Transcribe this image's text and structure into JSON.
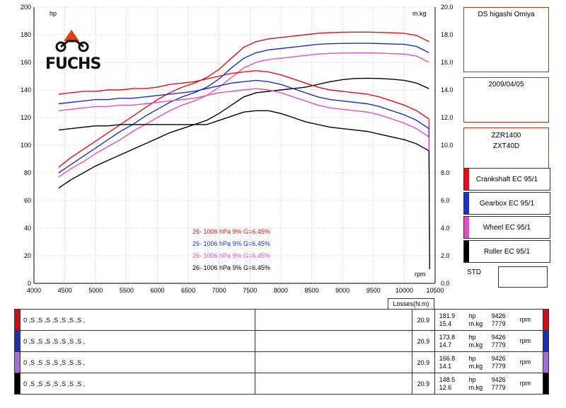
{
  "header": {
    "shop": "DS higashi Omiya",
    "date": "2009/04/05",
    "model1": "ZZR1400",
    "model2": "ZXT40D"
  },
  "logo": {
    "text": "FUCHS"
  },
  "legend": [
    {
      "label": "Crankshaft EC 95/1",
      "color": "#e0101a"
    },
    {
      "label": "Gearbox EC 95/1",
      "color": "#1a30c8"
    },
    {
      "label": "Wheel EC 95/1",
      "color": "#e050c0"
    },
    {
      "label": "Roller EC 95/1",
      "color": "#000000"
    }
  ],
  "std_label": "STD",
  "losses_header": "Losses(N.m)",
  "results": [
    {
      "color": "#c8101a",
      "dots": "0 ,S ,S ,S ,S ,S ,S ,S ,",
      "loss": "20.9",
      "hp": "181.9",
      "hp_unit": "hp",
      "hp_rpm": "9426",
      "torque": "15.4",
      "torque_unit": "m.kg",
      "torque_rpm": "7779",
      "rpm_unit": "rpm"
    },
    {
      "color": "#1a30b0",
      "dots": "0 ,S ,S ,S ,S ,S ,S ,S ,",
      "loss": "20.9",
      "hp": "173.8",
      "hp_unit": "hp",
      "hp_rpm": "9426",
      "torque": "14.7",
      "torque_unit": "m.kg",
      "torque_rpm": "7779",
      "rpm_unit": "rpm"
    },
    {
      "color": "#a070d0",
      "dots": "0 ,S ,S ,S ,S ,S ,S ,S ,",
      "loss": "20.9",
      "hp": "166.8",
      "hp_unit": "hp",
      "hp_rpm": "9426",
      "torque": "14.1",
      "torque_unit": "m.kg",
      "torque_rpm": "7779",
      "rpm_unit": "rpm"
    },
    {
      "color": "#000000",
      "dots": "0 ,S ,S ,S ,S ,S ,S ,S ,",
      "loss": "20.9",
      "hp": "148.5",
      "hp_unit": "hp",
      "hp_rpm": "9426",
      "torque": "12.6",
      "torque_unit": "m.kg",
      "torque_rpm": "7779",
      "rpm_unit": "rpm"
    }
  ],
  "chart_data": {
    "type": "line",
    "xlabel": "rpm",
    "ylabel_left": "hp",
    "ylabel_right": "m.kg",
    "xlim": [
      4000,
      10500
    ],
    "ylim_left": [
      0,
      200
    ],
    "ylim_right": [
      0,
      20
    ],
    "x_ticks": [
      4000,
      4500,
      5000,
      5500,
      6000,
      6500,
      7000,
      7500,
      8000,
      8500,
      9000,
      9500,
      10000,
      10500
    ],
    "y_ticks_left": [
      0,
      20,
      40,
      60,
      80,
      100,
      120,
      140,
      160,
      180,
      200
    ],
    "y_ticks_right": [
      "0.0",
      "2.0",
      "4.0",
      "6.0",
      "8.0",
      "10.0",
      "12.0",
      "14.0",
      "16.0",
      "18.0",
      "20.0"
    ],
    "grid": true,
    "annotations": [
      {
        "text": "26-   1006 hPa   9%     G=6.45%",
        "color": "#e0101a"
      },
      {
        "text": "26-   1006 hPa   9%     G=6.45%",
        "color": "#1a30c8"
      },
      {
        "text": "26-   1006 hPa   9%     G=6.45%",
        "color": "#e050c0"
      },
      {
        "text": "26-   1006 hPa   9%     G=6.45%",
        "color": "#000000"
      }
    ],
    "x": [
      4400,
      4600,
      4800,
      5000,
      5200,
      5400,
      5600,
      5800,
      6000,
      6200,
      6400,
      6600,
      6800,
      7000,
      7200,
      7400,
      7600,
      7800,
      8000,
      8200,
      8400,
      8600,
      8800,
      9000,
      9200,
      9400,
      9600,
      9800,
      10000,
      10200,
      10400
    ],
    "series": [
      {
        "name": "Crankshaft EC 95/1 hp",
        "axis": "left",
        "color": "#e0101a",
        "values": [
          84,
          91,
          97,
          103,
          109,
          115,
          121,
          127,
          133,
          138,
          142,
          145,
          149,
          155,
          163,
          171,
          175,
          177,
          178,
          179,
          180,
          181,
          181.5,
          181.8,
          181.9,
          181.9,
          181.7,
          181.4,
          181,
          179.5,
          175
        ]
      },
      {
        "name": "Gearbox EC 95/1 hp",
        "axis": "left",
        "color": "#1a30c8",
        "values": [
          80,
          86,
          92,
          98,
          104,
          110,
          115,
          121,
          126,
          131,
          135,
          138,
          142,
          148,
          156,
          163,
          167,
          169,
          170,
          171,
          172,
          173,
          173.5,
          173.7,
          173.8,
          173.8,
          173.6,
          173.3,
          173,
          171.5,
          167
        ]
      },
      {
        "name": "Wheel EC 95/1 hp",
        "axis": "left",
        "color": "#e050c0",
        "values": [
          77,
          83,
          88,
          94,
          99,
          104,
          110,
          115,
          120,
          125,
          129,
          132,
          136,
          142,
          149,
          156,
          160,
          162,
          163,
          164,
          165,
          166,
          166.5,
          166.7,
          166.8,
          166.8,
          166.6,
          166.3,
          166,
          164.5,
          160
        ]
      },
      {
        "name": "Roller EC 95/1 hp",
        "axis": "left",
        "color": "#000000",
        "values": [
          69,
          75,
          80,
          85,
          89,
          93,
          97,
          101,
          105,
          109,
          112,
          115,
          118,
          123,
          129,
          135,
          138,
          139,
          140,
          141,
          142,
          144,
          146,
          147.5,
          148.3,
          148.5,
          148.3,
          147.8,
          147,
          145,
          141
        ]
      },
      {
        "name": "Crankshaft EC 95/1 m.kg",
        "axis": "right",
        "color": "#e0101a",
        "values": [
          13.7,
          13.8,
          13.9,
          13.9,
          14.0,
          14.0,
          14.1,
          14.1,
          14.2,
          14.4,
          14.5,
          14.6,
          14.8,
          15.0,
          15.2,
          15.3,
          15.4,
          15.3,
          15.1,
          14.8,
          14.5,
          14.2,
          14.0,
          13.9,
          13.8,
          13.7,
          13.5,
          13.2,
          12.9,
          12.5,
          11.9
        ]
      },
      {
        "name": "Gearbox EC 95/1 m.kg",
        "axis": "right",
        "color": "#1a30c8",
        "values": [
          13.0,
          13.1,
          13.2,
          13.3,
          13.3,
          13.4,
          13.4,
          13.5,
          13.6,
          13.7,
          13.8,
          13.9,
          14.1,
          14.3,
          14.5,
          14.6,
          14.7,
          14.6,
          14.4,
          14.1,
          13.8,
          13.5,
          13.3,
          13.2,
          13.1,
          13.0,
          12.8,
          12.5,
          12.2,
          11.8,
          11.2
        ]
      },
      {
        "name": "Wheel EC 95/1 m.kg",
        "axis": "right",
        "color": "#e050c0",
        "values": [
          12.5,
          12.6,
          12.7,
          12.8,
          12.8,
          12.9,
          12.9,
          13.0,
          13.1,
          13.2,
          13.3,
          13.4,
          13.6,
          13.8,
          13.9,
          14.0,
          14.1,
          14.0,
          13.8,
          13.5,
          13.2,
          12.9,
          12.7,
          12.6,
          12.5,
          12.4,
          12.2,
          11.9,
          11.6,
          11.2,
          10.6
        ]
      },
      {
        "name": "Roller EC 95/1 m.kg",
        "axis": "right",
        "color": "#000000",
        "values": [
          11.1,
          11.2,
          11.3,
          11.4,
          11.4,
          11.5,
          11.5,
          11.5,
          11.5,
          11.5,
          11.5,
          11.5,
          11.5,
          11.8,
          12.1,
          12.4,
          12.5,
          12.5,
          12.3,
          12.0,
          11.7,
          11.5,
          11.3,
          11.2,
          11.1,
          11.0,
          10.8,
          10.6,
          10.4,
          10.1,
          9.6
        ]
      }
    ]
  }
}
